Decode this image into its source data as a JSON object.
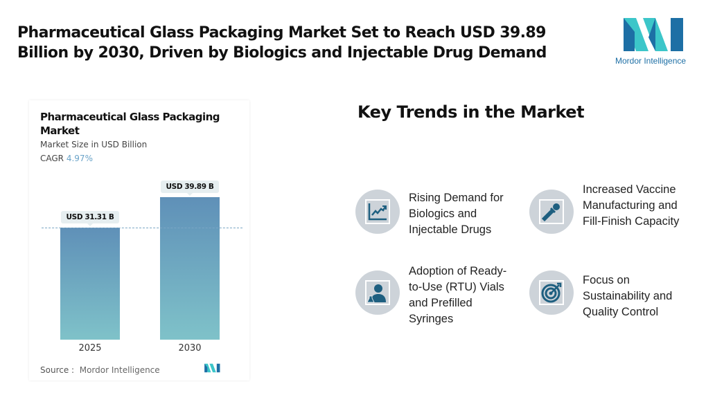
{
  "header": {
    "title": "Pharmaceutical Glass Packaging Market Set to Reach USD 39.89 Billion by 2030, Driven by Biologics and Injectable Drug Demand",
    "logo_text": "Mordor Intelligence"
  },
  "chart_data": {
    "type": "bar",
    "title": "Pharmaceutical Glass Packaging Market",
    "subtitle": "Market Size in USD Billion",
    "cagr_label": "CAGR",
    "cagr_value": "4.97%",
    "categories": [
      "2025",
      "2030"
    ],
    "values": [
      31.31,
      39.89
    ],
    "data_labels": [
      "USD 31.31 B",
      "USD 39.89 B"
    ],
    "bar_color_top": "#5f90b8",
    "bar_color_bottom": "#7fc2c9",
    "reference_line": 31.31,
    "source_label": "Source :",
    "source": "Mordor Intelligence"
  },
  "trends": {
    "heading": "Key Trends in the Market",
    "items": [
      {
        "label": "Rising Demand for Biologics and Injectable Drugs",
        "icon": "growth-chart-icon"
      },
      {
        "label": "Increased Vaccine Manufacturing and Fill-Finish Capacity",
        "icon": "dropper-icon"
      },
      {
        "label": "Adoption of Ready-to-Use (RTU) Vials and Prefilled Syringes",
        "icon": "scientist-icon"
      },
      {
        "label": "Focus on Sustainability and Quality Control",
        "icon": "target-icon"
      }
    ]
  },
  "colors": {
    "icon": "#1e5f80",
    "circle": "#cdd3d9",
    "logo_dark": "#1d6fa5",
    "logo_light": "#3cc6c9"
  }
}
